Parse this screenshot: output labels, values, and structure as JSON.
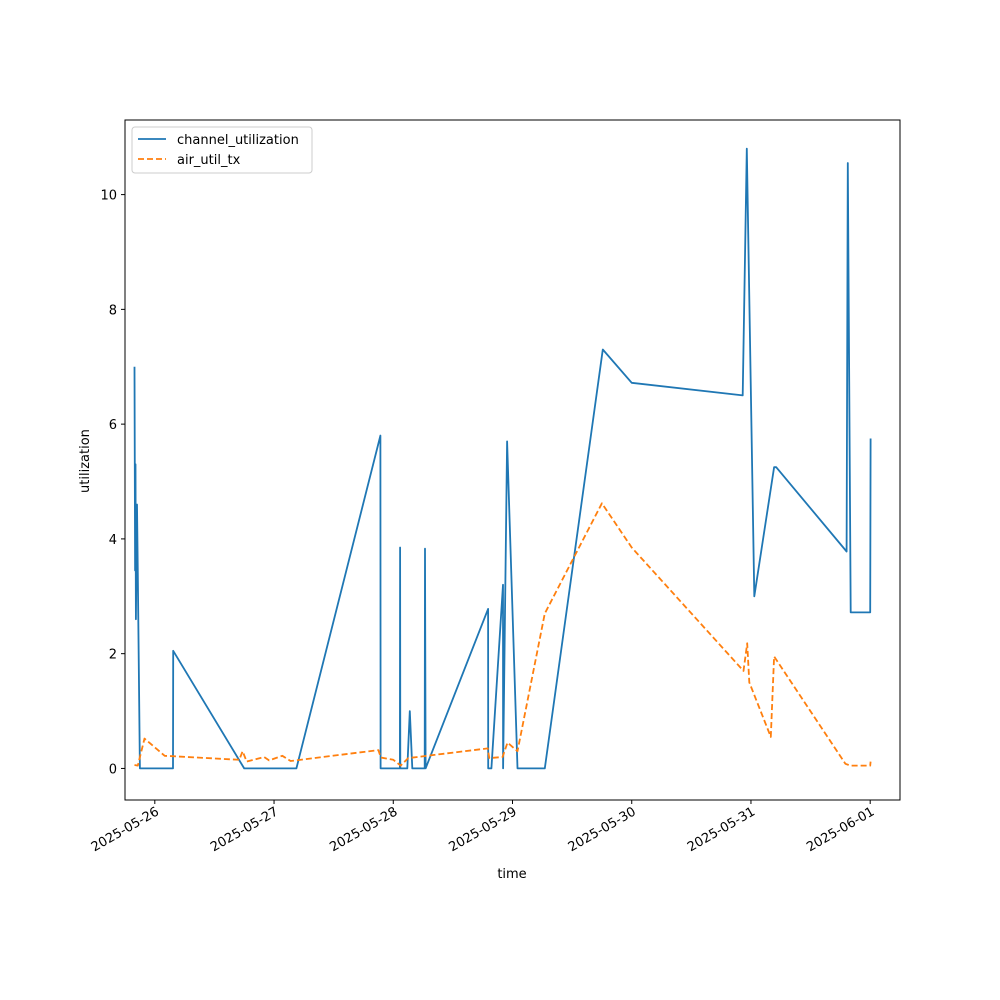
{
  "chart_data": {
    "type": "line",
    "xlabel": "time",
    "ylabel": "utilization",
    "x_axis_type": "date",
    "xlim": [
      "2025-05-25T18:00",
      "2025-06-01T06:00"
    ],
    "ylim": [
      -0.55,
      11.3
    ],
    "x_ticks": [
      {
        "value": "2025-05-26T00:00",
        "label": "2025-05-26"
      },
      {
        "value": "2025-05-27T00:00",
        "label": "2025-05-27"
      },
      {
        "value": "2025-05-28T00:00",
        "label": "2025-05-28"
      },
      {
        "value": "2025-05-29T00:00",
        "label": "2025-05-29"
      },
      {
        "value": "2025-05-30T00:00",
        "label": "2025-05-30"
      },
      {
        "value": "2025-05-31T00:00",
        "label": "2025-05-31"
      },
      {
        "value": "2025-06-01T00:00",
        "label": "2025-06-01"
      }
    ],
    "y_ticks": [
      {
        "value": 0,
        "label": "0"
      },
      {
        "value": 2,
        "label": "2"
      },
      {
        "value": 4,
        "label": "4"
      },
      {
        "value": 6,
        "label": "6"
      },
      {
        "value": 8,
        "label": "8"
      },
      {
        "value": 10,
        "label": "10"
      }
    ],
    "grid": false,
    "legend_position": "top-left",
    "series": [
      {
        "name": "channel_utilization",
        "color": "#1f77b4",
        "style": "solid",
        "points": [
          [
            "2025-05-25T19:55",
            7.0
          ],
          [
            "2025-05-25T20:02",
            3.45
          ],
          [
            "2025-05-25T20:07",
            5.3
          ],
          [
            "2025-05-25T20:12",
            2.6
          ],
          [
            "2025-05-25T20:25",
            4.6
          ],
          [
            "2025-05-25T20:35",
            3.4
          ],
          [
            "2025-05-25T21:00",
            0.0
          ],
          [
            "2025-05-26T03:40",
            0.0
          ],
          [
            "2025-05-26T03:42",
            2.05
          ],
          [
            "2025-05-26T18:00",
            0.0
          ],
          [
            "2025-05-27T04:30",
            0.0
          ],
          [
            "2025-05-27T21:25",
            5.8
          ],
          [
            "2025-05-27T21:27",
            0.0
          ],
          [
            "2025-05-28T01:20",
            0.0
          ],
          [
            "2025-05-28T01:23",
            3.85
          ],
          [
            "2025-05-28T01:25",
            0.0
          ],
          [
            "2025-05-28T02:50",
            0.0
          ],
          [
            "2025-05-28T03:20",
            1.0
          ],
          [
            "2025-05-28T03:50",
            0.0
          ],
          [
            "2025-05-28T06:20",
            0.0
          ],
          [
            "2025-05-28T06:23",
            3.83
          ],
          [
            "2025-05-28T06:30",
            0.0
          ],
          [
            "2025-05-28T19:05",
            2.78
          ],
          [
            "2025-05-28T19:07",
            0.0
          ],
          [
            "2025-05-28T19:45",
            0.0
          ],
          [
            "2025-05-28T22:05",
            3.2
          ],
          [
            "2025-05-28T22:07",
            0.0
          ],
          [
            "2025-05-28T22:55",
            5.7
          ],
          [
            "2025-05-29T01:00",
            0.0
          ],
          [
            "2025-05-29T06:30",
            0.0
          ],
          [
            "2025-05-29T18:10",
            7.3
          ],
          [
            "2025-05-30T00:00",
            6.72
          ],
          [
            "2025-05-30T22:20",
            6.5
          ],
          [
            "2025-05-30T23:10",
            10.8
          ],
          [
            "2025-05-31T00:40",
            3.0
          ],
          [
            "2025-05-31T04:40",
            5.25
          ],
          [
            "2025-05-31T05:05",
            5.25
          ],
          [
            "2025-05-31T19:15",
            3.78
          ],
          [
            "2025-05-31T19:30",
            10.55
          ],
          [
            "2025-05-31T20:05",
            2.72
          ],
          [
            "2025-06-01T00:00",
            2.72
          ],
          [
            "2025-06-01T00:05",
            5.75
          ]
        ]
      },
      {
        "name": "air_util_tx",
        "color": "#ff7f0e",
        "style": "dashed",
        "points": [
          [
            "2025-05-25T19:55",
            0.06
          ],
          [
            "2025-05-25T20:35",
            0.05
          ],
          [
            "2025-05-25T21:55",
            0.52
          ],
          [
            "2025-05-26T02:00",
            0.22
          ],
          [
            "2025-05-26T17:00",
            0.15
          ],
          [
            "2025-05-26T17:40",
            0.3
          ],
          [
            "2025-05-26T18:30",
            0.12
          ],
          [
            "2025-05-26T22:00",
            0.2
          ],
          [
            "2025-05-26T23:00",
            0.14
          ],
          [
            "2025-05-27T01:40",
            0.22
          ],
          [
            "2025-05-27T03:20",
            0.13
          ],
          [
            "2025-05-27T21:00",
            0.32
          ],
          [
            "2025-05-27T21:30",
            0.19
          ],
          [
            "2025-05-28T00:00",
            0.15
          ],
          [
            "2025-05-28T01:30",
            0.05
          ],
          [
            "2025-05-28T03:00",
            0.18
          ],
          [
            "2025-05-28T19:00",
            0.35
          ],
          [
            "2025-05-28T19:20",
            0.18
          ],
          [
            "2025-05-28T22:00",
            0.2
          ],
          [
            "2025-05-28T23:00",
            0.45
          ],
          [
            "2025-05-29T01:00",
            0.3
          ],
          [
            "2025-05-29T06:30",
            2.7
          ],
          [
            "2025-05-29T18:00",
            4.62
          ],
          [
            "2025-05-30T00:00",
            3.85
          ],
          [
            "2025-05-30T22:30",
            1.7
          ],
          [
            "2025-05-30T23:15",
            2.18
          ],
          [
            "2025-05-30T23:40",
            1.5
          ],
          [
            "2025-05-31T04:00",
            0.55
          ],
          [
            "2025-05-31T04:40",
            1.95
          ],
          [
            "2025-05-31T19:00",
            0.08
          ],
          [
            "2025-05-31T20:00",
            0.05
          ],
          [
            "2025-06-01T00:00",
            0.05
          ],
          [
            "2025-06-01T00:05",
            0.12
          ]
        ]
      }
    ]
  }
}
